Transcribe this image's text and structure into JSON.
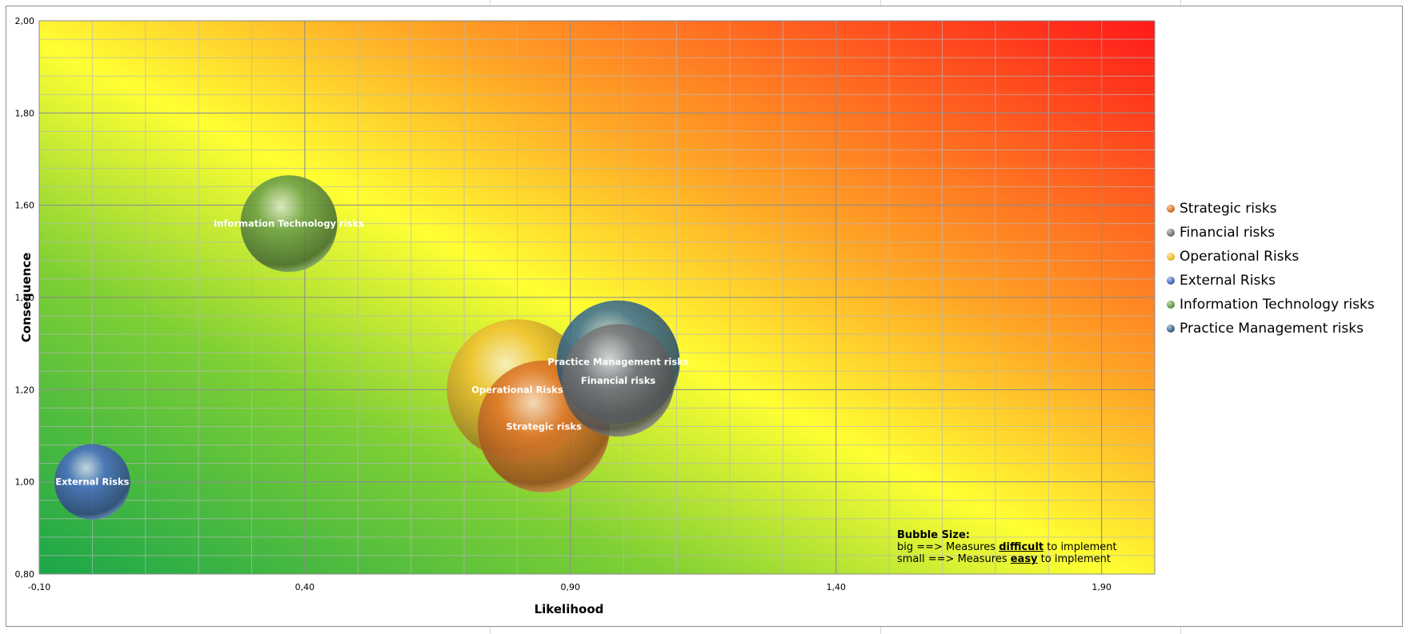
{
  "chart_data": {
    "type": "bubble",
    "xlabel": "Likelihood",
    "ylabel": "Consequence",
    "xlim": [
      -0.1,
      2.0
    ],
    "ylim": [
      0.8,
      2.0
    ],
    "x_ticks": [
      "-0,10",
      "0,40",
      "0,90",
      "1,40",
      "1,90"
    ],
    "x_tick_values": [
      -0.1,
      0.4,
      0.9,
      1.4,
      1.9
    ],
    "y_ticks": [
      "0,80",
      "1,00",
      "1,20",
      "1,40",
      "1,60",
      "1,80",
      "2,00"
    ],
    "y_tick_values": [
      0.8,
      1.0,
      1.2,
      1.4,
      1.6,
      1.8,
      2.0
    ],
    "grid": true,
    "legend_position": "right",
    "series": [
      {
        "name": "Strategic risks",
        "x": 0.85,
        "y": 1.12,
        "size": 1.5,
        "color": "#e0782a",
        "label": "Strategic risks"
      },
      {
        "name": "Financial risks",
        "x": 0.99,
        "y": 1.22,
        "size": 1.28,
        "color": "#7a7a7a",
        "label": "Financial risks"
      },
      {
        "name": "Operational Risks",
        "x": 0.8,
        "y": 1.2,
        "size": 1.6,
        "color": "#f2c232",
        "label": "Operational Risks"
      },
      {
        "name": "External Risks",
        "x": 0.0,
        "y": 1.0,
        "size": 0.86,
        "color": "#4a6fc4",
        "label": "External Risks"
      },
      {
        "name": "Information Technology risks",
        "x": 0.37,
        "y": 1.56,
        "size": 1.1,
        "color": "#6aa04a",
        "label": "Information Technology risks"
      },
      {
        "name": "Practice Management risks",
        "x": 0.99,
        "y": 1.26,
        "size": 1.4,
        "color": "#3e6f95",
        "label": "Practice Management risks"
      }
    ]
  },
  "note": {
    "title": "Bubble Size:",
    "line1_prefix": "big ==> Measures ",
    "line1_emph": "difficult",
    "line1_suffix": " to implement",
    "line2_prefix": "small ==> Measures ",
    "line2_emph": "easy",
    "line2_suffix": " to implement"
  }
}
